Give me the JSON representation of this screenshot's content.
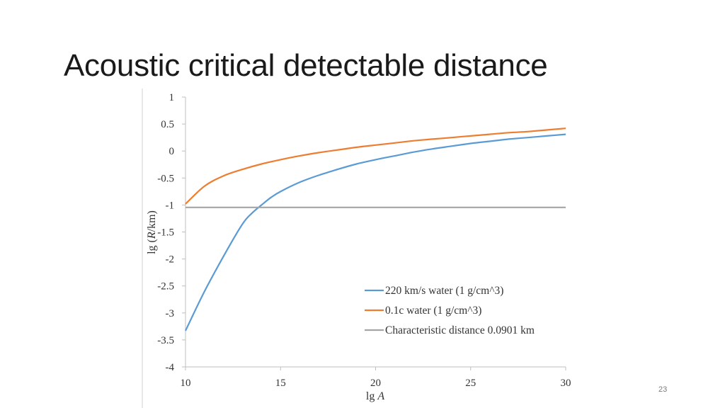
{
  "slide": {
    "title": "Acoustic critical detectable distance",
    "page_number": "23"
  },
  "chart_data": {
    "type": "line",
    "title": "",
    "xlabel_prefix": "lg ",
    "xlabel_var": "A",
    "ylabel_prefix": "lg (",
    "ylabel_var": "R",
    "ylabel_suffix": "/km)",
    "xlim": [
      10,
      30
    ],
    "ylim": [
      -4,
      1
    ],
    "x_ticks": [
      10,
      15,
      20,
      25,
      30
    ],
    "x_tick_labels": [
      "10",
      "15",
      "20",
      "25",
      "30"
    ],
    "y_ticks": [
      1,
      0.5,
      0,
      -0.5,
      -1,
      -1.5,
      -2,
      -2.5,
      -3,
      -3.5,
      -4
    ],
    "y_tick_labels": [
      "1",
      "0.5",
      "0",
      "-0.5",
      "-1",
      "-1.5",
      "-2",
      "-2.5",
      "-3",
      "-3.5",
      "-4"
    ],
    "grid": false,
    "legend_position": "bottom-right",
    "series": [
      {
        "name": "220 km/s water (1 g/cm^3)",
        "color": "#5b9bd5",
        "x": [
          10,
          11,
          12,
          13,
          13.5,
          14,
          14.5,
          15,
          16,
          17,
          18,
          19,
          20,
          21,
          22,
          23,
          24,
          25,
          26,
          27,
          28,
          29,
          30
        ],
        "y": [
          -3.33,
          -2.6,
          -1.95,
          -1.35,
          -1.15,
          -1.0,
          -0.86,
          -0.75,
          -0.58,
          -0.45,
          -0.34,
          -0.24,
          -0.16,
          -0.09,
          -0.02,
          0.04,
          0.09,
          0.14,
          0.18,
          0.22,
          0.25,
          0.28,
          0.31
        ]
      },
      {
        "name": "0.1c water (1 g/cm^3)",
        "color": "#ed7d31",
        "x": [
          10,
          11,
          12,
          13,
          14,
          15,
          16,
          17,
          18,
          19,
          20,
          21,
          22,
          23,
          24,
          25,
          26,
          27,
          28,
          29,
          30
        ],
        "y": [
          -0.98,
          -0.65,
          -0.46,
          -0.34,
          -0.24,
          -0.16,
          -0.09,
          -0.03,
          0.02,
          0.07,
          0.11,
          0.15,
          0.19,
          0.22,
          0.25,
          0.28,
          0.31,
          0.34,
          0.36,
          0.39,
          0.42
        ]
      },
      {
        "name": "Characteristic distance 0.0901 km",
        "color": "#a5a5a5",
        "x": [
          10,
          30
        ],
        "y": [
          -1.045,
          -1.045
        ]
      }
    ]
  }
}
